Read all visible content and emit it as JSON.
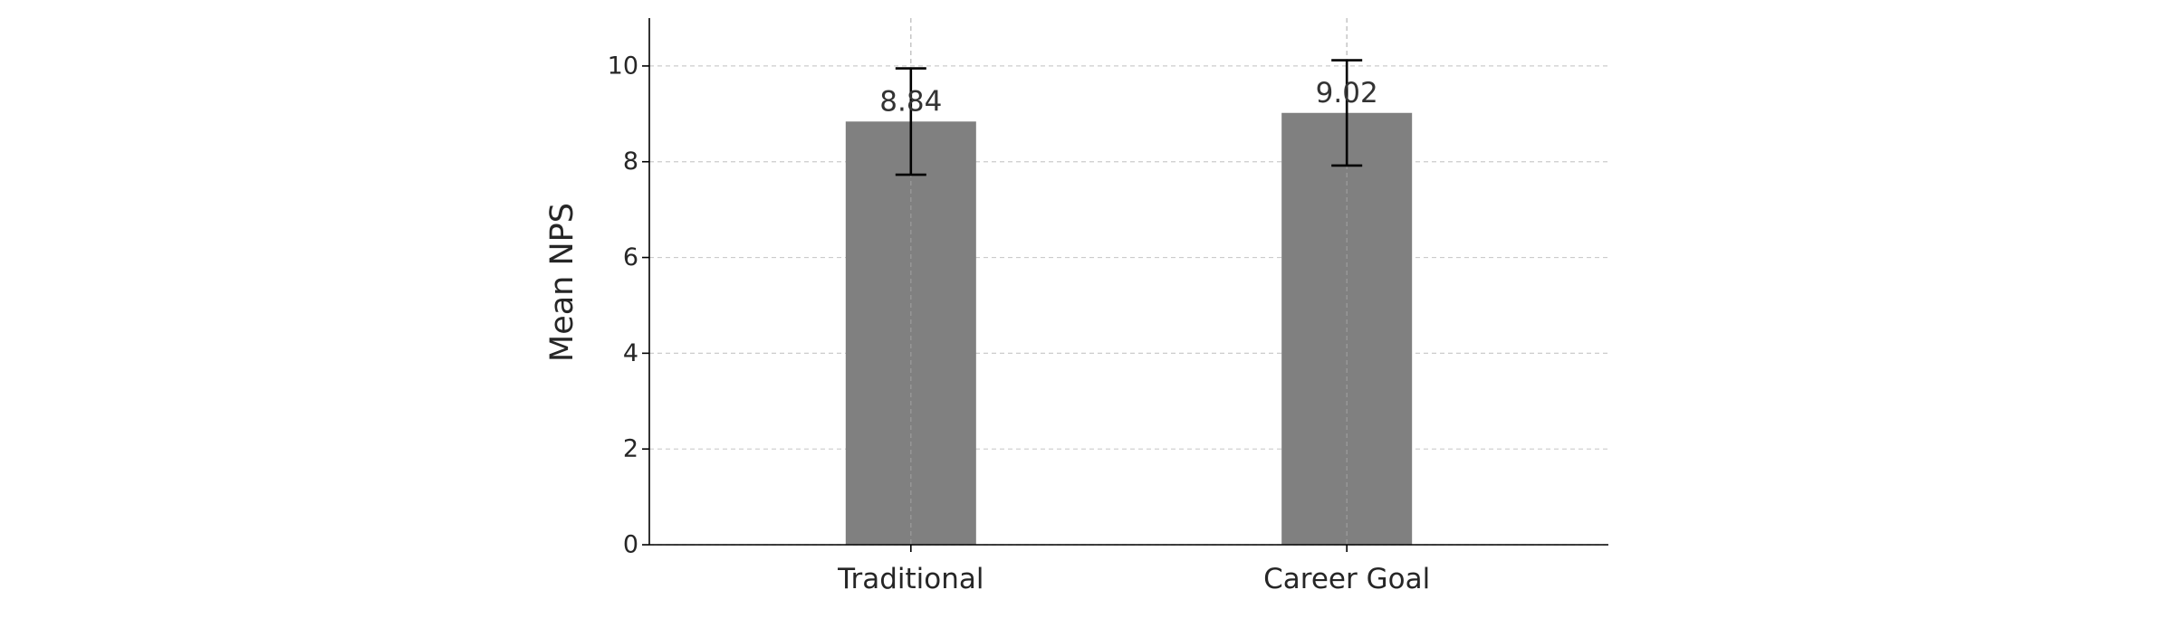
{
  "chart_data": {
    "type": "bar",
    "categories": [
      "Traditional",
      "Career Goal"
    ],
    "values": [
      8.84,
      9.02
    ],
    "errors": [
      1.11,
      1.1
    ],
    "value_labels": [
      "8.84",
      "9.02"
    ],
    "title": "",
    "xlabel": "",
    "ylabel": "Mean NPS",
    "ylim": [
      0,
      11
    ],
    "yticks": [
      0,
      2,
      4,
      6,
      8,
      10
    ],
    "ytick_labels": [
      "0",
      "2",
      "4",
      "6",
      "8",
      "10"
    ],
    "grid": true,
    "bar_color": "#808080",
    "grid_color": "#cccccc",
    "axis_color": "#000000",
    "error_color": "#000000"
  }
}
